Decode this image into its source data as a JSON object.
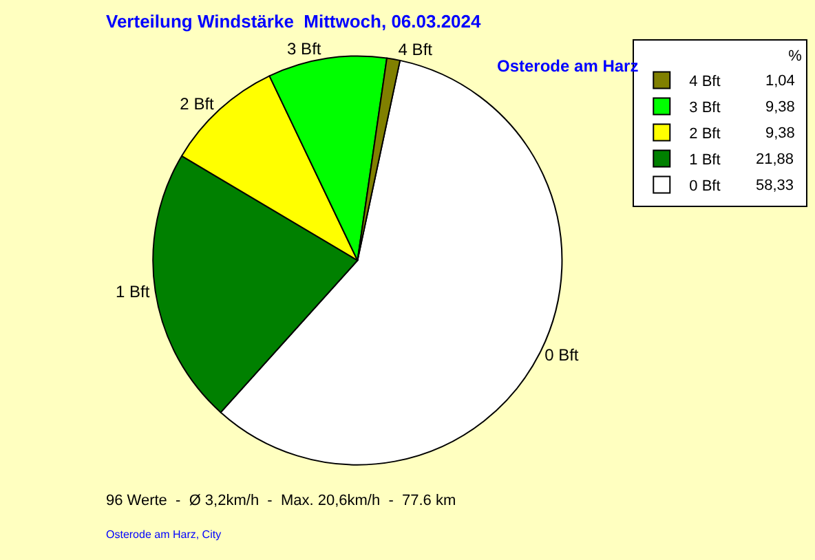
{
  "chart_data": {
    "type": "pie",
    "title": "Verteilung Windstärke  Mittwoch, 06.03.2024",
    "subtitle": "Osterode am Harz",
    "categories": [
      "0 Bft",
      "1 Bft",
      "2 Bft",
      "3 Bft",
      "4 Bft"
    ],
    "values": [
      58.33,
      21.88,
      9.38,
      9.38,
      1.04
    ],
    "value_labels": [
      "58,33",
      "21,88",
      "9,38",
      "9,38",
      "1,04"
    ],
    "colors": [
      "#ffffff",
      "#008000",
      "#ffff00",
      "#00ff00",
      "#808000"
    ],
    "legend": "top right",
    "legend_title": "%",
    "annotations": [
      "96 Werte  -  Ø 3,2km/h  -  Max. 20,6km/h  -  77.6 km",
      "Osterode am Harz, City"
    ]
  }
}
